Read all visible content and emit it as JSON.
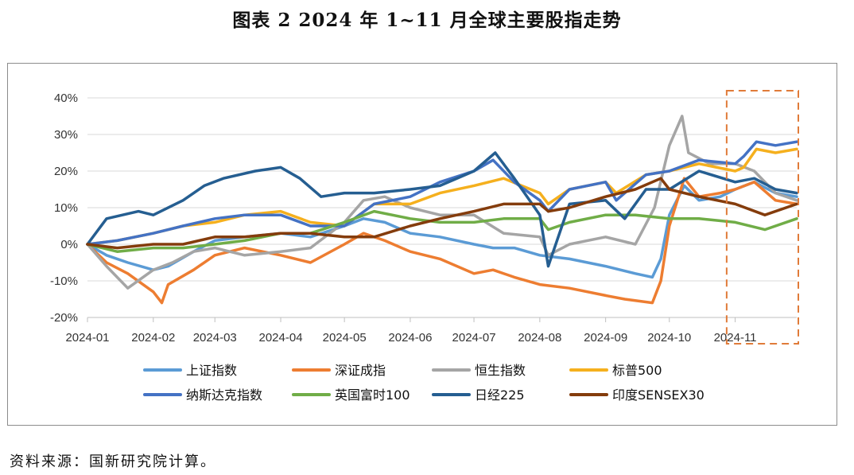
{
  "title": "图表 2  2024 年 1~11 月全球主要股指走势",
  "source": "资料来源：国新研究院计算。",
  "chart_data": {
    "type": "line",
    "ylim": [
      -0.2,
      0.4
    ],
    "y_ticks": [
      "-20%",
      "-10%",
      "0%",
      "10%",
      "20%",
      "30%",
      "40%"
    ],
    "x_ticks": [
      "2024-01",
      "2024-02",
      "2024-03",
      "2024-04",
      "2024-05",
      "2024-06",
      "2024-07",
      "2024-08",
      "2024-09",
      "2024-10",
      "2024-11"
    ],
    "grid": "horizontal",
    "legend_position": "bottom",
    "highlight_box": {
      "from": "2024-11-01",
      "to": "2024-11-30",
      "style": "dashed orange"
    },
    "series": [
      {
        "name": "上证指数",
        "color": "#5B9BD5",
        "x": [
          "2024-01-01",
          "2024-01-10",
          "2024-01-20",
          "2024-02-01",
          "2024-02-08",
          "2024-02-20",
          "2024-03-01",
          "2024-03-15",
          "2024-04-01",
          "2024-04-15",
          "2024-05-01",
          "2024-05-10",
          "2024-05-20",
          "2024-06-01",
          "2024-06-15",
          "2024-07-01",
          "2024-07-10",
          "2024-07-20",
          "2024-08-01",
          "2024-08-15",
          "2024-09-01",
          "2024-09-15",
          "2024-09-23",
          "2024-09-27",
          "2024-10-01",
          "2024-10-08",
          "2024-10-15",
          "2024-10-25",
          "2024-11-01",
          "2024-11-10",
          "2024-11-20",
          "2024-11-30"
        ],
        "values": [
          0,
          -0.03,
          -0.05,
          -0.07,
          -0.06,
          -0.02,
          0.01,
          0.02,
          0.03,
          0.02,
          0.05,
          0.07,
          0.06,
          0.03,
          0.02,
          0.0,
          -0.01,
          -0.01,
          -0.03,
          -0.04,
          -0.06,
          -0.08,
          -0.09,
          -0.04,
          0.08,
          0.16,
          0.12,
          0.13,
          0.15,
          0.17,
          0.14,
          0.13
        ]
      },
      {
        "name": "深证成指",
        "color": "#ED7D31",
        "x": [
          "2024-01-01",
          "2024-01-10",
          "2024-01-20",
          "2024-02-01",
          "2024-02-05",
          "2024-02-08",
          "2024-02-20",
          "2024-03-01",
          "2024-03-15",
          "2024-04-01",
          "2024-04-15",
          "2024-05-01",
          "2024-05-10",
          "2024-05-20",
          "2024-06-01",
          "2024-06-15",
          "2024-07-01",
          "2024-07-10",
          "2024-07-20",
          "2024-08-01",
          "2024-08-15",
          "2024-09-01",
          "2024-09-10",
          "2024-09-23",
          "2024-09-27",
          "2024-10-01",
          "2024-10-08",
          "2024-10-15",
          "2024-10-25",
          "2024-11-01",
          "2024-11-10",
          "2024-11-20",
          "2024-11-30"
        ],
        "values": [
          0,
          -0.05,
          -0.08,
          -0.13,
          -0.16,
          -0.11,
          -0.07,
          -0.03,
          -0.01,
          -0.03,
          -0.05,
          0.0,
          0.03,
          0.01,
          -0.02,
          -0.04,
          -0.08,
          -0.07,
          -0.09,
          -0.11,
          -0.12,
          -0.14,
          -0.15,
          -0.16,
          -0.1,
          0.05,
          0.18,
          0.13,
          0.14,
          0.15,
          0.17,
          0.12,
          0.11
        ]
      },
      {
        "name": "恒生指数",
        "color": "#A5A5A5",
        "x": [
          "2024-01-01",
          "2024-01-10",
          "2024-01-20",
          "2024-02-01",
          "2024-02-10",
          "2024-02-20",
          "2024-03-01",
          "2024-03-15",
          "2024-04-01",
          "2024-04-15",
          "2024-05-01",
          "2024-05-10",
          "2024-05-20",
          "2024-06-01",
          "2024-06-15",
          "2024-07-01",
          "2024-07-15",
          "2024-08-01",
          "2024-08-05",
          "2024-08-15",
          "2024-09-01",
          "2024-09-15",
          "2024-09-24",
          "2024-10-01",
          "2024-10-07",
          "2024-10-10",
          "2024-10-20",
          "2024-11-01",
          "2024-11-10",
          "2024-11-20",
          "2024-11-30"
        ],
        "values": [
          0,
          -0.06,
          -0.12,
          -0.07,
          -0.05,
          -0.02,
          -0.01,
          -0.03,
          -0.02,
          -0.01,
          0.06,
          0.12,
          0.13,
          0.1,
          0.08,
          0.08,
          0.03,
          0.02,
          -0.03,
          0.0,
          0.02,
          0.0,
          0.1,
          0.27,
          0.35,
          0.25,
          0.22,
          0.22,
          0.2,
          0.14,
          0.12
        ]
      },
      {
        "name": "标普500",
        "color": "#F5B01E",
        "x": [
          "2024-01-01",
          "2024-01-15",
          "2024-02-01",
          "2024-02-15",
          "2024-03-01",
          "2024-03-15",
          "2024-04-01",
          "2024-04-15",
          "2024-05-01",
          "2024-05-15",
          "2024-06-01",
          "2024-06-15",
          "2024-07-01",
          "2024-07-15",
          "2024-08-01",
          "2024-08-05",
          "2024-08-15",
          "2024-09-01",
          "2024-09-06",
          "2024-09-20",
          "2024-10-01",
          "2024-10-15",
          "2024-11-01",
          "2024-11-05",
          "2024-11-11",
          "2024-11-20",
          "2024-11-30"
        ],
        "values": [
          0,
          0.01,
          0.03,
          0.05,
          0.06,
          0.08,
          0.09,
          0.06,
          0.05,
          0.11,
          0.11,
          0.14,
          0.16,
          0.18,
          0.14,
          0.11,
          0.15,
          0.17,
          0.14,
          0.19,
          0.2,
          0.22,
          0.2,
          0.21,
          0.26,
          0.25,
          0.26
        ]
      },
      {
        "name": "纳斯达克指数",
        "color": "#4472C4",
        "x": [
          "2024-01-01",
          "2024-01-15",
          "2024-02-01",
          "2024-02-15",
          "2024-03-01",
          "2024-03-15",
          "2024-04-01",
          "2024-04-15",
          "2024-05-01",
          "2024-05-15",
          "2024-06-01",
          "2024-06-15",
          "2024-07-01",
          "2024-07-10",
          "2024-07-20",
          "2024-08-01",
          "2024-08-05",
          "2024-08-15",
          "2024-09-01",
          "2024-09-06",
          "2024-09-20",
          "2024-10-01",
          "2024-10-15",
          "2024-11-01",
          "2024-11-05",
          "2024-11-11",
          "2024-11-20",
          "2024-11-30"
        ],
        "values": [
          0,
          0.01,
          0.03,
          0.05,
          0.07,
          0.08,
          0.08,
          0.05,
          0.05,
          0.11,
          0.13,
          0.17,
          0.2,
          0.23,
          0.17,
          0.12,
          0.09,
          0.15,
          0.17,
          0.12,
          0.19,
          0.2,
          0.23,
          0.22,
          0.24,
          0.28,
          0.27,
          0.28
        ]
      },
      {
        "name": "英国富时100",
        "color": "#70AD47",
        "x": [
          "2024-01-01",
          "2024-01-15",
          "2024-02-01",
          "2024-02-15",
          "2024-03-01",
          "2024-03-15",
          "2024-04-01",
          "2024-04-15",
          "2024-05-01",
          "2024-05-15",
          "2024-06-01",
          "2024-06-15",
          "2024-07-01",
          "2024-07-15",
          "2024-08-01",
          "2024-08-05",
          "2024-08-15",
          "2024-09-01",
          "2024-09-15",
          "2024-10-01",
          "2024-10-15",
          "2024-11-01",
          "2024-11-15",
          "2024-11-30"
        ],
        "values": [
          0,
          -0.02,
          -0.01,
          -0.01,
          0.0,
          0.01,
          0.03,
          0.03,
          0.06,
          0.09,
          0.07,
          0.06,
          0.06,
          0.07,
          0.07,
          0.04,
          0.06,
          0.08,
          0.08,
          0.07,
          0.07,
          0.06,
          0.04,
          0.07
        ]
      },
      {
        "name": "日经225",
        "color": "#255E91",
        "x": [
          "2024-01-01",
          "2024-01-10",
          "2024-01-25",
          "2024-02-01",
          "2024-02-15",
          "2024-02-25",
          "2024-03-05",
          "2024-03-20",
          "2024-04-01",
          "2024-04-10",
          "2024-04-20",
          "2024-05-01",
          "2024-05-15",
          "2024-06-01",
          "2024-06-15",
          "2024-07-01",
          "2024-07-11",
          "2024-07-20",
          "2024-08-01",
          "2024-08-05",
          "2024-08-15",
          "2024-09-01",
          "2024-09-10",
          "2024-09-20",
          "2024-10-01",
          "2024-10-15",
          "2024-11-01",
          "2024-11-10",
          "2024-11-20",
          "2024-11-30"
        ],
        "values": [
          0,
          0.07,
          0.09,
          0.08,
          0.12,
          0.16,
          0.18,
          0.2,
          0.21,
          0.18,
          0.13,
          0.14,
          0.14,
          0.15,
          0.16,
          0.2,
          0.25,
          0.18,
          0.08,
          -0.06,
          0.11,
          0.12,
          0.07,
          0.15,
          0.15,
          0.2,
          0.17,
          0.18,
          0.15,
          0.14
        ]
      },
      {
        "name": "印度SENSEX30",
        "color": "#843C0C",
        "x": [
          "2024-01-01",
          "2024-01-15",
          "2024-02-01",
          "2024-02-15",
          "2024-03-01",
          "2024-03-15",
          "2024-04-01",
          "2024-04-15",
          "2024-05-01",
          "2024-05-15",
          "2024-06-01",
          "2024-06-15",
          "2024-07-01",
          "2024-07-15",
          "2024-08-01",
          "2024-08-05",
          "2024-08-15",
          "2024-09-01",
          "2024-09-15",
          "2024-09-27",
          "2024-10-01",
          "2024-10-15",
          "2024-11-01",
          "2024-11-15",
          "2024-11-30"
        ],
        "values": [
          0,
          -0.01,
          0.0,
          0.0,
          0.02,
          0.02,
          0.03,
          0.03,
          0.02,
          0.02,
          0.05,
          0.07,
          0.09,
          0.11,
          0.11,
          0.09,
          0.1,
          0.13,
          0.15,
          0.18,
          0.15,
          0.13,
          0.11,
          0.08,
          0.11
        ]
      }
    ]
  }
}
